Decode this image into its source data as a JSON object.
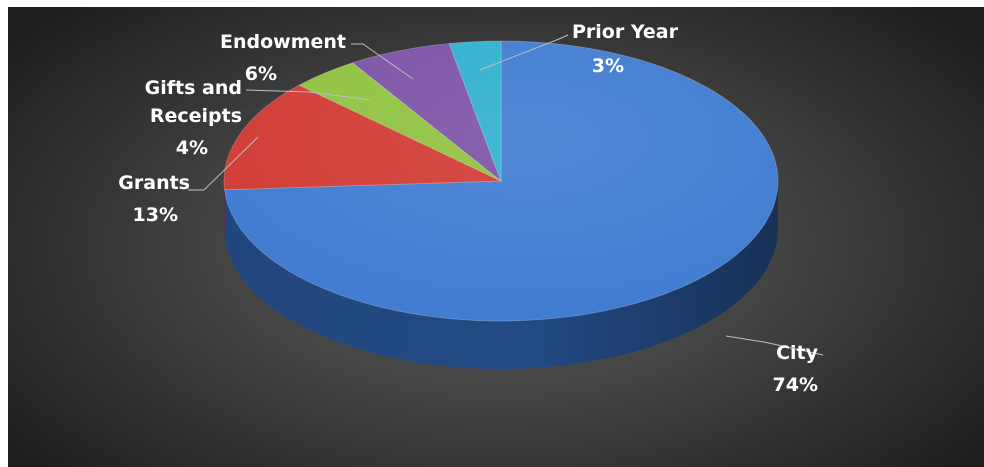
{
  "chart_data": {
    "type": "pie",
    "three_d": true,
    "title": "",
    "slices": [
      {
        "label": "City",
        "pct_label": "74%",
        "value": 74,
        "color": "#3f7bd1",
        "side_color": "#234a84"
      },
      {
        "label": "Grants",
        "pct_label": "13%",
        "value": 13,
        "color": "#d13a33",
        "side_color": "#7d211c"
      },
      {
        "label": "Gifts and Receipts",
        "label_lines": [
          "Gifts and",
          "Receipts"
        ],
        "pct_label": "4%",
        "value": 4,
        "color": "#8fc23f",
        "side_color": "#557524"
      },
      {
        "label": "Endowment",
        "pct_label": "6%",
        "value": 6,
        "color": "#7b52a6",
        "side_color": "#48305f"
      },
      {
        "label": "Prior Year",
        "pct_label": "3%",
        "value": 3,
        "color": "#2fb0cf",
        "side_color": "#1b6a7c"
      }
    ],
    "legend": "none",
    "data_labels": "outside with leader lines"
  }
}
